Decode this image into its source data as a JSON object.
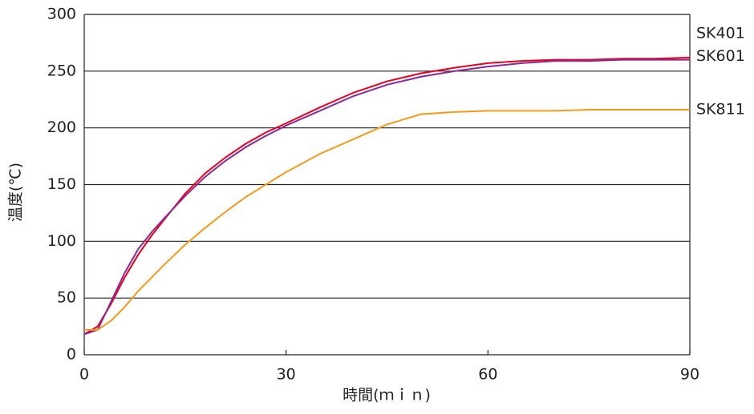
{
  "chart_data": {
    "type": "line",
    "x_label": "時間(ｍｉｎ)",
    "y_label": "温度(℃)",
    "x": [
      0,
      2,
      4,
      6,
      8,
      10,
      12,
      15,
      18,
      21,
      24,
      27,
      30,
      35,
      40,
      45,
      50,
      55,
      60,
      65,
      70,
      75,
      80,
      85,
      90
    ],
    "series": [
      {
        "name": "SK401",
        "color": "#e60020",
        "values": [
          18,
          25,
          45,
          68,
          88,
          105,
          120,
          142,
          160,
          174,
          186,
          196,
          204,
          218,
          231,
          241,
          248,
          253,
          257,
          259,
          260,
          260,
          261,
          261,
          262
        ]
      },
      {
        "name": "SK601",
        "color": "#8b2a8e",
        "values": [
          18,
          22,
          47,
          72,
          93,
          108,
          121,
          140,
          157,
          171,
          183,
          193,
          202,
          215,
          228,
          238,
          245,
          250,
          254,
          257,
          259,
          259,
          260,
          260,
          260
        ]
      },
      {
        "name": "SK811",
        "color": "#f29a1c",
        "values": [
          22,
          22,
          30,
          42,
          56,
          68,
          80,
          97,
          112,
          126,
          139,
          150,
          161,
          177,
          190,
          203,
          212,
          214,
          215,
          215,
          215,
          216,
          216,
          216,
          216
        ]
      }
    ],
    "xlim": [
      0,
      90
    ],
    "xticks": [
      0,
      30,
      60,
      90
    ],
    "ylim": [
      0,
      300
    ],
    "yticks": [
      0,
      50,
      100,
      150,
      200,
      250,
      300
    ],
    "grid": true
  }
}
